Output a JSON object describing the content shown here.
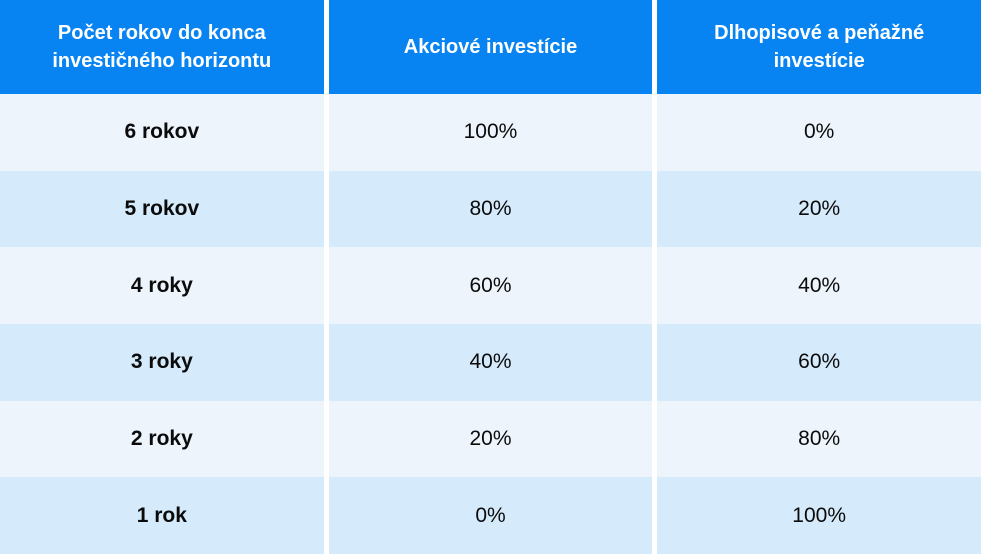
{
  "colors": {
    "accent": "#0884F2",
    "row-light": "#EDF4FC",
    "row-dark": "#D5EAFB",
    "text": "#0B0B0B",
    "header-text": "#FFFFFF",
    "gap": "#FFFFFF"
  },
  "table": {
    "headers": [
      "Počet rokov do konca investičného horizontu",
      "Akciové investície",
      "Dlhopisové a peňažné investície"
    ],
    "rows": [
      {
        "cells": [
          "6 rokov",
          "100%",
          "0%"
        ]
      },
      {
        "cells": [
          "5 rokov",
          "80%",
          "20%"
        ]
      },
      {
        "cells": [
          "4 roky",
          "60%",
          "40%"
        ]
      },
      {
        "cells": [
          "3 roky",
          "40%",
          "60%"
        ]
      },
      {
        "cells": [
          "2 roky",
          "20%",
          "80%"
        ]
      },
      {
        "cells": [
          "1 rok",
          "0%",
          "100%"
        ]
      }
    ]
  },
  "chart_data": {
    "type": "table",
    "title": "",
    "columns": [
      "Počet rokov do konca investičného horizontu",
      "Akciové investície",
      "Dlhopisové a peňažné investície"
    ],
    "rows": [
      [
        "6 rokov",
        "100%",
        "0%"
      ],
      [
        "5 rokov",
        "80%",
        "20%"
      ],
      [
        "4 roky",
        "60%",
        "40%"
      ],
      [
        "3 roky",
        "40%",
        "60%"
      ],
      [
        "2 roky",
        "20%",
        "80%"
      ],
      [
        "1 rok",
        "0%",
        "100%"
      ]
    ],
    "years_remaining": [
      6,
      5,
      4,
      3,
      2,
      1
    ],
    "series": [
      {
        "name": "Akciové investície",
        "values": [
          100,
          80,
          60,
          40,
          20,
          0
        ]
      },
      {
        "name": "Dlhopisové a peňažné investície",
        "values": [
          0,
          20,
          40,
          60,
          80,
          100
        ]
      }
    ],
    "value_unit": "%"
  }
}
